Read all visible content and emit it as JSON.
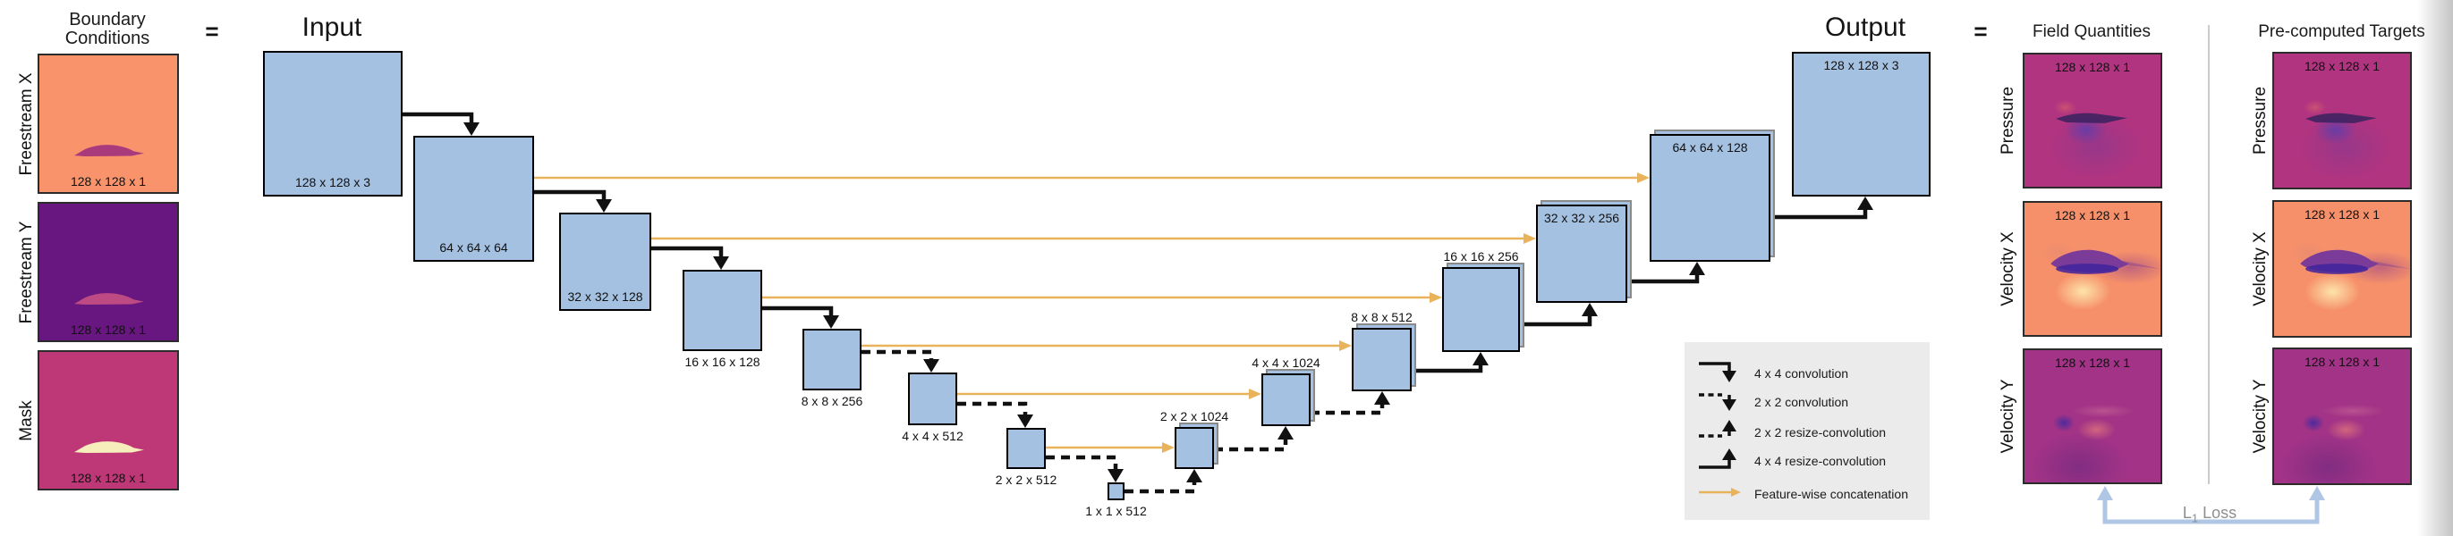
{
  "boundary": {
    "title": "Boundary Conditions",
    "equals": "=",
    "items": [
      {
        "id": "freestream-x",
        "label": "Freestream X",
        "size": "128 x 128 x 1",
        "bg": "#F8936B",
        "airfoil": "#A93A7B"
      },
      {
        "id": "freestream-y",
        "label": "Freestream Y",
        "size": "128 x 128 x 1",
        "bg": "#67177F",
        "airfoil": "#BE4A83"
      },
      {
        "id": "mask",
        "label": "Mask",
        "size": "128 x 128 x 1",
        "bg": "#BE3877",
        "airfoil": "#F6EFBC"
      }
    ]
  },
  "unet": {
    "input_title": "Input",
    "output_title": "Output",
    "boxes": [
      {
        "id": "input",
        "label": "128 x 128 x 3"
      },
      {
        "id": "enc-64",
        "label": "64 x 64 x 64"
      },
      {
        "id": "enc-32",
        "label": "32 x 32 x 128"
      },
      {
        "id": "enc-16",
        "label": "16 x 16 x 128"
      },
      {
        "id": "enc-8",
        "label": "8 x 8 x 256"
      },
      {
        "id": "enc-4",
        "label": "4 x 4 x 512"
      },
      {
        "id": "enc-2",
        "label": "2 x 2 x 512"
      },
      {
        "id": "bottleneck",
        "label": "1 x 1 x 512"
      },
      {
        "id": "dec-2",
        "label": "2 x 2 x 1024"
      },
      {
        "id": "dec-4",
        "label": "4 x 4 x 1024"
      },
      {
        "id": "dec-8",
        "label": "8 x 8 x 512"
      },
      {
        "id": "dec-16",
        "label": "16 x 16 x 256"
      },
      {
        "id": "dec-32",
        "label": "32 x 32 x 256"
      },
      {
        "id": "dec-64",
        "label": "64 x 64 x 128"
      },
      {
        "id": "output",
        "label": "128 x 128 x 3"
      }
    ]
  },
  "legend": {
    "items": [
      {
        "id": "conv44",
        "label": "4 x 4 convolution"
      },
      {
        "id": "conv22",
        "label": "2 x 2 convolution"
      },
      {
        "id": "resize22",
        "label": "2 x 2 resize-convolution"
      },
      {
        "id": "resize44",
        "label": "4 x 4 resize-convolution"
      },
      {
        "id": "concat",
        "label": "Feature-wise concatenation"
      }
    ]
  },
  "results": {
    "equals": "=",
    "field_title": "Field Quantities",
    "target_title": "Pre-computed Targets",
    "rows": [
      {
        "id": "pressure",
        "label": "Pressure",
        "size": "128 x 128 x 1"
      },
      {
        "id": "velocity-x",
        "label": "Velocity X",
        "size": "128 x 128 x 1"
      },
      {
        "id": "velocity-y",
        "label": "Velocity Y",
        "size": "128 x 128 x 1"
      }
    ],
    "loss": {
      "main": "L",
      "sub": "1",
      "rest": "Loss"
    }
  },
  "colors": {
    "box_fill": "#A5C1E1",
    "box_border": "#000000",
    "box_ghost_border": "#8A8A8A",
    "arrow_black": "#111111",
    "skip_orange": "#E9B35C",
    "loss_blue": "#AFC7E5",
    "loss_text": "#8E8E8E",
    "legend_bg": "#EBEBEB",
    "divider_gray": "#CBCBCB",
    "pressure_bg": "#B13480",
    "velocity_x_bg": "#F6906A",
    "velocity_y_bg": "#A23386"
  }
}
